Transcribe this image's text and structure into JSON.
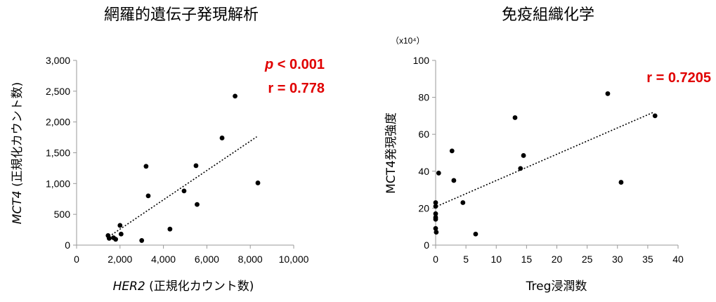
{
  "chart_data": [
    {
      "type": "scatter",
      "title": "網羅的遺伝子発現解析",
      "xlabel": {
        "italic": "HER2",
        "rest": " (正規化カウント数)"
      },
      "ylabel": {
        "italic": "MCT4",
        "rest": " (正規化カウント数)"
      },
      "xlim": [
        0,
        10000
      ],
      "ylim": [
        0,
        3000
      ],
      "xticks": [
        0,
        2000,
        4000,
        6000,
        8000,
        10000
      ],
      "xtick_labels": [
        "0",
        "2,000",
        "4,000",
        "6,000",
        "8,000",
        "10,000"
      ],
      "yticks": [
        0,
        500,
        1000,
        1500,
        2000,
        2500,
        3000
      ],
      "ytick_labels": [
        "0",
        "500",
        "1,000",
        "1,500",
        "2,000",
        "2,500",
        "3,000"
      ],
      "points": [
        [
          1450,
          155
        ],
        [
          1500,
          110
        ],
        [
          1700,
          120
        ],
        [
          1800,
          95
        ],
        [
          2000,
          320
        ],
        [
          2050,
          180
        ],
        [
          3000,
          75
        ],
        [
          3200,
          1280
        ],
        [
          3300,
          800
        ],
        [
          4300,
          260
        ],
        [
          4950,
          880
        ],
        [
          5500,
          1290
        ],
        [
          5550,
          660
        ],
        [
          6700,
          1740
        ],
        [
          7300,
          2420
        ],
        [
          8350,
          1010
        ]
      ],
      "trendline": [
        [
          1500,
          140
        ],
        [
          8300,
          1760
        ]
      ],
      "annotations": [
        {
          "italic": "p",
          "rest": " < 0.001"
        },
        {
          "italic": "",
          "rest": "r = 0.778"
        }
      ],
      "grid": false
    },
    {
      "type": "scatter",
      "title": "免疫組織化学",
      "xlabel": "Treg浸潤数",
      "ylabel": "MCT4発現強度",
      "unit_note": "（x10⁴）",
      "xlim": [
        0,
        40
      ],
      "ylim": [
        0,
        100
      ],
      "xticks": [
        0,
        5,
        10,
        15,
        20,
        25,
        30,
        35,
        40
      ],
      "xtick_labels": [
        "0",
        "5",
        "10",
        "15",
        "20",
        "25",
        "30",
        "35",
        "40"
      ],
      "yticks": [
        0,
        20,
        40,
        60,
        80,
        100
      ],
      "ytick_labels": [
        "0",
        "20",
        "40",
        "60",
        "80",
        "100"
      ],
      "points": [
        [
          0,
          23
        ],
        [
          0,
          21
        ],
        [
          0,
          17
        ],
        [
          0,
          15
        ],
        [
          0,
          14
        ],
        [
          0,
          9
        ],
        [
          0.1,
          7
        ],
        [
          0.5,
          39
        ],
        [
          2.7,
          51
        ],
        [
          3.0,
          35
        ],
        [
          4.5,
          23
        ],
        [
          6.6,
          6
        ],
        [
          13.1,
          69
        ],
        [
          14.0,
          41.5
        ],
        [
          14.5,
          48.5
        ],
        [
          28.4,
          82
        ],
        [
          30.6,
          34
        ],
        [
          36.2,
          70
        ]
      ],
      "trendline": [
        [
          0.2,
          21
        ],
        [
          36,
          72
        ]
      ],
      "annotations": [
        {
          "italic": "",
          "rest": "r  = 0.7205"
        }
      ],
      "grid": false
    }
  ]
}
